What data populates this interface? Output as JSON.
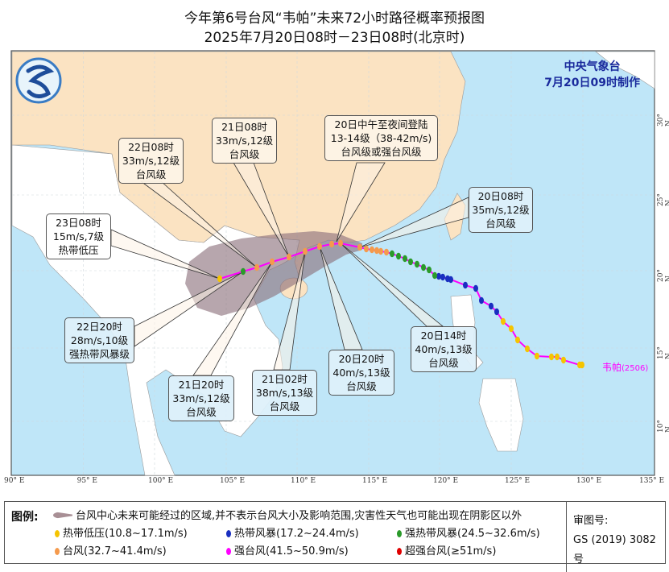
{
  "title": {
    "line1": "今年第6号台风“韦帕”未来72小时路径概率预报图",
    "line2": "2025年7月20日08时－23日08时(北京时)"
  },
  "agency": {
    "name": "中央气象台",
    "issued": "7月20日09时制作"
  },
  "axes": {
    "longitude_labels": [
      "90° E",
      "95° E",
      "100° E",
      "105° E",
      "110° E",
      "115° E",
      "120° E",
      "125° E",
      "130° E",
      "135° E"
    ],
    "latitude_labels": [
      "30° N",
      "25° N",
      "20° N",
      "15° N",
      "10° N"
    ]
  },
  "storm": {
    "name": "韦帕",
    "number": "(2506)"
  },
  "forecast_points": [
    {
      "time": "20日08时",
      "wind": "35m/s,12级",
      "category": "台风级",
      "intensity": "typhoon"
    },
    {
      "time": "20日中午至夜间登陆",
      "wind": "13-14级（38-42m/s)",
      "category": "台风级或强台风级",
      "intensity": "typhoon"
    },
    {
      "time": "20日14时",
      "wind": "40m/s,13级",
      "category": "台风级",
      "intensity": "typhoon"
    },
    {
      "time": "20日20时",
      "wind": "40m/s,13级",
      "category": "台风级",
      "intensity": "typhoon"
    },
    {
      "time": "21日02时",
      "wind": "38m/s,13级",
      "category": "台风级",
      "intensity": "typhoon"
    },
    {
      "time": "21日08时",
      "wind": "33m/s,12级",
      "category": "台风级",
      "intensity": "typhoon"
    },
    {
      "time": "21日20时",
      "wind": "33m/s,12级",
      "category": "台风级",
      "intensity": "typhoon"
    },
    {
      "time": "22日08时",
      "wind": "33m/s,12级",
      "category": "台风级",
      "intensity": "typhoon"
    },
    {
      "time": "22日20时",
      "wind": "28m/s,10级",
      "category": "强热带风暴级",
      "intensity": "severe_tropical_storm"
    },
    {
      "time": "23日08时",
      "wind": "15m/s,7级",
      "category": "热带低压",
      "intensity": "tropical_depression"
    }
  ],
  "legend": {
    "heading": "图例:",
    "cone": "台风中心未来可能经过的区域,并不表示台风大小及影响范围,灾害性天气也可能出现在阴影区以外",
    "items": [
      {
        "label": "热带低压(10.8~17.1m/s)",
        "color": "#f5c400"
      },
      {
        "label": "热带风暴(17.2~24.4m/s)",
        "color": "#1a2fc0"
      },
      {
        "label": "强热带风暴(24.5~32.6m/s)",
        "color": "#2a9a2a"
      },
      {
        "label": "台风(32.7~41.4m/s)",
        "color": "#f59a4c"
      },
      {
        "label": "强台风(41.5~50.9m/s)",
        "color": "#ff00ff"
      },
      {
        "label": "超强台风(≥51m/s)",
        "color": "#e00000"
      }
    ],
    "review_label": "审图号:",
    "review_number": "GS (2019) 3082号"
  },
  "colors": {
    "sea": "#bfe6f8",
    "china_land": "#fbe3c2",
    "other_land": "#ffffff",
    "cone": "#8a6f7a",
    "track": "#ff00ff"
  }
}
